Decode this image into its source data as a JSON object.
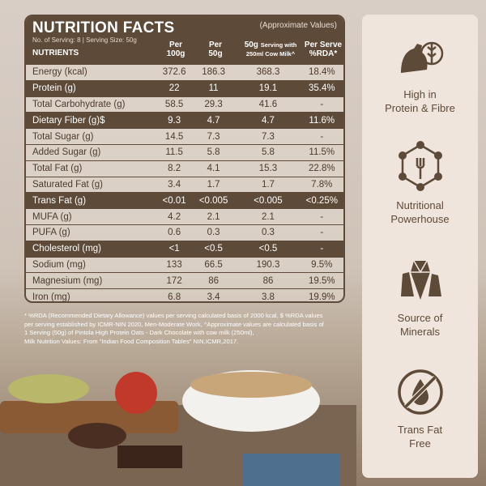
{
  "table": {
    "title": "NUTRITION FACTS",
    "note": "(Approximate Values)",
    "serving": "No. of Serving: 8 | Serving Size: 50g",
    "nutrients_label": "NUTRIENTS",
    "col1": [
      "Per",
      "100g"
    ],
    "col2": [
      "Per",
      "50g"
    ],
    "col3": [
      "50g",
      "Serving with",
      "250ml Cow Milk^"
    ],
    "col4": [
      "Per Serve",
      "%RDA*"
    ],
    "rows": [
      {
        "name": "Energy (kcal)",
        "v1": "372.6",
        "v2": "186.3",
        "v3": "368.3",
        "v4": "18.4%",
        "dark": false
      },
      {
        "name": "Protein (g)",
        "v1": "22",
        "v2": "11",
        "v3": "19.1",
        "v4": "35.4%",
        "dark": true
      },
      {
        "name": "Total Carbohydrate (g)",
        "v1": "58.5",
        "v2": "29.3",
        "v3": "41.6",
        "v4": "-",
        "dark": false
      },
      {
        "name": "Dietary Fiber (g)$",
        "v1": "9.3",
        "v2": "4.7",
        "v3": "4.7",
        "v4": "11.6%",
        "dark": true
      },
      {
        "name": "Total Sugar (g)",
        "v1": "14.5",
        "v2": "7.3",
        "v3": "7.3",
        "v4": "-",
        "dark": false
      },
      {
        "name": "Added Sugar (g)",
        "v1": "11.5",
        "v2": "5.8",
        "v3": "5.8",
        "v4": "11.5%",
        "dark": false
      },
      {
        "name": "Total Fat (g)",
        "v1": "8.2",
        "v2": "4.1",
        "v3": "15.3",
        "v4": "22.8%",
        "dark": false
      },
      {
        "name": "Saturated Fat (g)",
        "v1": "3.4",
        "v2": "1.7",
        "v3": "1.7",
        "v4": "7.8%",
        "dark": false
      },
      {
        "name": "Trans Fat (g)",
        "v1": "<0.01",
        "v2": "<0.005",
        "v3": "<0.005",
        "v4": "<0.25%",
        "dark": true
      },
      {
        "name": "MUFA (g)",
        "v1": "4.2",
        "v2": "2.1",
        "v3": "2.1",
        "v4": "-",
        "dark": false
      },
      {
        "name": "PUFA (g)",
        "v1": "0.6",
        "v2": "0.3",
        "v3": "0.3",
        "v4": "-",
        "dark": false
      },
      {
        "name": "Cholesterol (mg)",
        "v1": "<1",
        "v2": "<0.5",
        "v3": "<0.5",
        "v4": "-",
        "dark": true
      },
      {
        "name": "Sodium (mg)",
        "v1": "133",
        "v2": "66.5",
        "v3": "190.3",
        "v4": "9.5%",
        "dark": false
      },
      {
        "name": "Magnesium (mg)",
        "v1": "172",
        "v2": "86",
        "v3": "86",
        "v4": "19.5%",
        "dark": false
      },
      {
        "name": "Iron (mg)",
        "v1": "6.8",
        "v2": "3.4",
        "v3": "3.8",
        "v4": "19.9%",
        "dark": false
      }
    ]
  },
  "footnote": [
    "* %RDA (Recommended Dietary Allowance) values per serving calculated basis of 2000 kcal, $ %RDA values",
    "per serving established by ICMR-NIN 2020, Men-Moderate Work, ^Approximate values are calculated basis of",
    "1 Serving (50g) of Pintola High Protein Oats - Dark Chocolate with cow milk (250ml),",
    "Milk Nutrition Values: From \"Indian Food Composition Tables\" NIN,ICMR,2017."
  ],
  "features": [
    {
      "icon": "muscle-wheat-icon",
      "line1": "High in",
      "line2": "Protein & Fibre"
    },
    {
      "icon": "molecule-fork-icon",
      "line1": "Nutritional",
      "line2": "Powerhouse"
    },
    {
      "icon": "crystal-icon",
      "line1": "Source of",
      "line2": "Minerals"
    },
    {
      "icon": "no-trans-fat-icon",
      "line1": "Trans Fat",
      "line2": "Free"
    }
  ],
  "colors": {
    "brown": "#5e4a38",
    "panel": "#efe5dc"
  }
}
